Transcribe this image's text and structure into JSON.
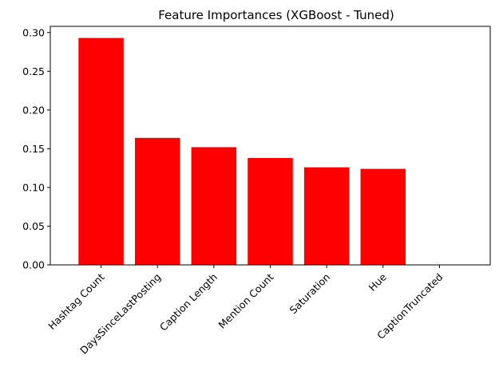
{
  "chart_data": {
    "type": "bar",
    "title": "Feature Importances (XGBoost - Tuned)",
    "xlabel": "",
    "ylabel": "",
    "categories": [
      "Hashtag Count",
      "DaysSinceLastPosting",
      "Caption Length",
      "Mention Count",
      "Saturation",
      "Hue",
      "CaptionTruncated"
    ],
    "values": [
      0.293,
      0.164,
      0.152,
      0.138,
      0.126,
      0.124,
      0.0
    ],
    "ylim": [
      0,
      0.308
    ],
    "yticks": [
      "0.00",
      "0.05",
      "0.10",
      "0.15",
      "0.20",
      "0.25",
      "0.30"
    ],
    "bar_color": "#ff0000",
    "grid": false,
    "legend": "none"
  }
}
